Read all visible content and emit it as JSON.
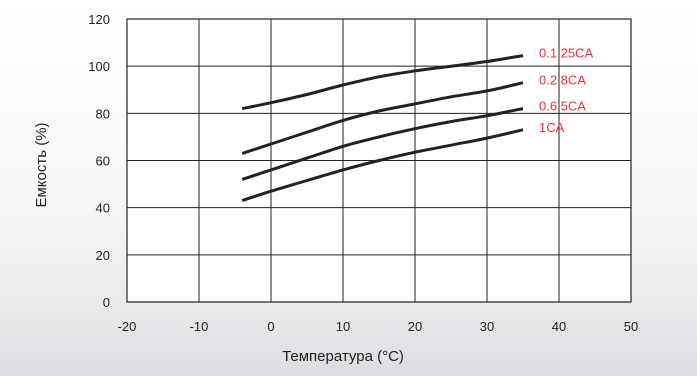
{
  "chart_data": {
    "type": "line",
    "title": "",
    "xlabel": "Температура (°C)",
    "ylabel": "Емкость (%)",
    "xlim": [
      -20,
      50
    ],
    "ylim": [
      0,
      120
    ],
    "xticks": [
      -20,
      -10,
      0,
      10,
      20,
      30,
      40,
      50
    ],
    "yticks": [
      0,
      20,
      40,
      60,
      80,
      100,
      120
    ],
    "grid": true,
    "legend": "inline labels at right end of curves",
    "line_color": "#222222",
    "label_color": "#e8333a",
    "series": [
      {
        "name": "0.1 25CA",
        "x": [
          -4,
          0,
          5,
          10,
          15,
          20,
          25,
          30,
          35
        ],
        "y": [
          82,
          84.5,
          88,
          92,
          95.5,
          98,
          100,
          102,
          104.5
        ]
      },
      {
        "name": "0.2 8CA",
        "x": [
          -4,
          0,
          5,
          10,
          15,
          20,
          25,
          30,
          35
        ],
        "y": [
          63,
          67,
          72,
          77,
          81,
          84,
          87,
          89.5,
          93
        ]
      },
      {
        "name": "0.6 5CA",
        "x": [
          -4,
          0,
          5,
          10,
          15,
          20,
          25,
          30,
          35
        ],
        "y": [
          52,
          56,
          61,
          66,
          70,
          73.5,
          76.5,
          79,
          82
        ]
      },
      {
        "name": "1CA",
        "x": [
          -4,
          0,
          5,
          10,
          15,
          20,
          25,
          30,
          35
        ],
        "y": [
          43,
          47,
          51.5,
          56,
          60,
          63.5,
          66.5,
          69.5,
          73
        ]
      }
    ]
  }
}
